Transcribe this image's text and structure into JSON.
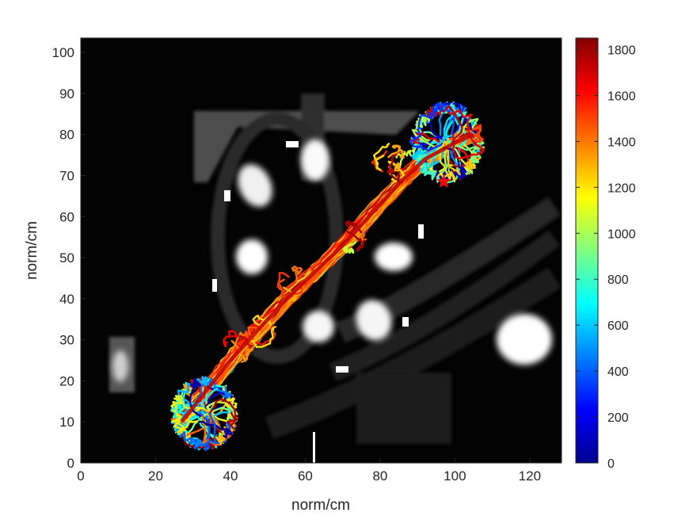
{
  "chart_data": {
    "type": "line",
    "xlabel": "norm/cm",
    "ylabel": "norm/cm",
    "xlim": [
      0,
      128.5
    ],
    "ylim": [
      0,
      103.5
    ],
    "xticks": [
      0,
      20,
      40,
      60,
      80,
      100,
      120
    ],
    "yticks": [
      0,
      10,
      20,
      30,
      40,
      50,
      60,
      70,
      80,
      90,
      100
    ],
    "background": "grayscale image (dark scene with bright blobs)",
    "trajectory_path": {
      "description": "dense colored trajectory bundle along diagonal from lower-left to upper-right",
      "spine": [
        [
          27,
          10
        ],
        [
          33,
          17
        ],
        [
          40,
          25
        ],
        [
          47,
          32
        ],
        [
          55,
          40
        ],
        [
          62,
          46
        ],
        [
          70,
          53
        ],
        [
          78,
          61
        ],
        [
          85,
          68
        ],
        [
          92,
          74
        ],
        [
          100,
          78
        ],
        [
          105,
          80
        ]
      ],
      "start_cluster": {
        "x": 33,
        "y": 12,
        "spread": 9
      },
      "end_cluster": {
        "x": 98,
        "y": 78,
        "spread": 10
      }
    },
    "colorbar": {
      "colormap": "jet",
      "clim": [
        0,
        1850
      ],
      "ticks": [
        0,
        200,
        400,
        600,
        800,
        1000,
        1200,
        1400,
        1600,
        1800
      ]
    },
    "marker": {
      "x": 97,
      "y": 68.5,
      "color": "#ff0000",
      "shape": "star"
    }
  }
}
